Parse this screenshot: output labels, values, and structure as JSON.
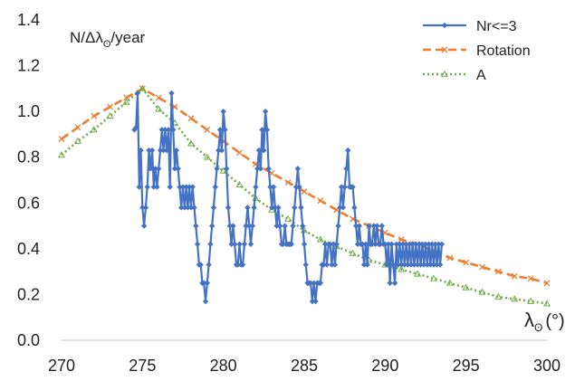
{
  "chart_data": {
    "type": "line",
    "title": "",
    "ylabel": "N/Δλ",
    "ylabel_sub": "ʘ",
    "ylabel_suffix": "/year",
    "xlabel": "λ",
    "xlabel_sub": "ʘ",
    "xlabel_suffix": "(°)",
    "xlim": [
      270,
      300
    ],
    "ylim": [
      0,
      1.4
    ],
    "xticks": [
      "270",
      "275",
      "280",
      "285",
      "290",
      "295",
      "300"
    ],
    "yticks": [
      "0.0",
      "0.2",
      "0.4",
      "0.6",
      "0.8",
      "1.0",
      "1.2",
      "1.4"
    ],
    "grid": false,
    "legend_position": "top-right",
    "series": [
      {
        "name": "Nr<=3",
        "color": "#4472C4",
        "style": "solid",
        "marker": "diamond",
        "points": [
          [
            274.5,
            0.92
          ],
          [
            274.6,
            0.93
          ],
          [
            274.7,
            1.08
          ],
          [
            274.8,
            0.67
          ],
          [
            274.9,
            0.83
          ],
          [
            275.0,
            0.58
          ],
          [
            275.1,
            0.5
          ],
          [
            275.2,
            0.58
          ],
          [
            275.3,
            0.67
          ],
          [
            275.4,
            0.83
          ],
          [
            275.5,
            0.75
          ],
          [
            275.6,
            0.83
          ],
          [
            275.7,
            0.67
          ],
          [
            275.8,
            0.75
          ],
          [
            275.9,
            0.67
          ],
          [
            276.0,
            0.75
          ],
          [
            276.1,
            0.83
          ],
          [
            276.2,
            0.92
          ],
          [
            276.3,
            0.83
          ],
          [
            276.4,
            0.92
          ],
          [
            276.5,
            0.83
          ],
          [
            276.6,
            0.92
          ],
          [
            276.7,
            0.67
          ],
          [
            276.8,
            1.08
          ],
          [
            276.9,
            0.92
          ],
          [
            277.0,
            0.75
          ],
          [
            277.1,
            0.83
          ],
          [
            277.2,
            0.75
          ],
          [
            277.3,
            0.67
          ],
          [
            277.4,
            0.58
          ],
          [
            277.5,
            0.67
          ],
          [
            277.6,
            0.58
          ],
          [
            277.7,
            0.67
          ],
          [
            277.8,
            0.58
          ],
          [
            277.9,
            0.67
          ],
          [
            278.0,
            0.58
          ],
          [
            278.1,
            0.67
          ],
          [
            278.2,
            0.58
          ],
          [
            278.3,
            0.5
          ],
          [
            278.4,
            0.42
          ],
          [
            278.5,
            0.33
          ],
          [
            278.6,
            0.33
          ],
          [
            278.7,
            0.25
          ],
          [
            278.8,
            0.25
          ],
          [
            278.9,
            0.17
          ],
          [
            279.0,
            0.25
          ],
          [
            279.1,
            0.33
          ],
          [
            279.2,
            0.42
          ],
          [
            279.3,
            0.5
          ],
          [
            279.4,
            0.58
          ],
          [
            279.5,
            0.67
          ],
          [
            279.6,
            0.75
          ],
          [
            279.7,
            0.83
          ],
          [
            279.8,
            0.92
          ],
          [
            279.9,
            0.83
          ],
          [
            280.0,
            1.0
          ],
          [
            280.1,
            0.92
          ],
          [
            280.2,
            0.75
          ],
          [
            280.3,
            0.58
          ],
          [
            280.4,
            0.5
          ],
          [
            280.5,
            0.42
          ],
          [
            280.6,
            0.5
          ],
          [
            280.7,
            0.42
          ],
          [
            280.8,
            0.33
          ],
          [
            280.9,
            0.33
          ],
          [
            281.0,
            0.42
          ],
          [
            281.1,
            0.33
          ],
          [
            281.2,
            0.33
          ],
          [
            281.3,
            0.42
          ],
          [
            281.4,
            0.5
          ],
          [
            281.5,
            0.58
          ],
          [
            281.6,
            0.5
          ],
          [
            281.7,
            0.42
          ],
          [
            281.8,
            0.5
          ],
          [
            281.9,
            0.58
          ],
          [
            282.0,
            0.67
          ],
          [
            282.1,
            0.75
          ],
          [
            282.2,
            0.83
          ],
          [
            282.3,
            0.75
          ],
          [
            282.4,
            0.92
          ],
          [
            282.5,
            0.83
          ],
          [
            282.6,
            1.0
          ],
          [
            282.7,
            0.92
          ],
          [
            282.8,
            0.75
          ],
          [
            282.9,
            0.67
          ],
          [
            283.0,
            0.58
          ],
          [
            283.1,
            0.67
          ],
          [
            283.2,
            0.58
          ],
          [
            283.3,
            0.5
          ],
          [
            283.4,
            0.58
          ],
          [
            283.5,
            0.5
          ],
          [
            283.6,
            0.42
          ],
          [
            283.7,
            0.42
          ],
          [
            283.8,
            0.5
          ],
          [
            283.9,
            0.42
          ],
          [
            284.0,
            0.42
          ],
          [
            284.1,
            0.42
          ],
          [
            284.2,
            0.42
          ],
          [
            284.3,
            0.5
          ],
          [
            284.4,
            0.58
          ],
          [
            284.5,
            0.67
          ],
          [
            284.6,
            0.75
          ],
          [
            284.7,
            0.67
          ],
          [
            284.8,
            0.58
          ],
          [
            284.9,
            0.5
          ],
          [
            285.0,
            0.42
          ],
          [
            285.1,
            0.33
          ],
          [
            285.2,
            0.25
          ],
          [
            285.3,
            0.25
          ],
          [
            285.4,
            0.25
          ],
          [
            285.5,
            0.17
          ],
          [
            285.6,
            0.25
          ],
          [
            285.7,
            0.17
          ],
          [
            285.8,
            0.25
          ],
          [
            285.9,
            0.25
          ],
          [
            286.0,
            0.25
          ],
          [
            286.1,
            0.33
          ],
          [
            286.2,
            0.33
          ],
          [
            286.3,
            0.42
          ],
          [
            286.4,
            0.33
          ],
          [
            286.5,
            0.42
          ],
          [
            286.6,
            0.42
          ],
          [
            286.7,
            0.33
          ],
          [
            286.8,
            0.42
          ],
          [
            286.9,
            0.33
          ],
          [
            287.0,
            0.42
          ],
          [
            287.1,
            0.5
          ],
          [
            287.2,
            0.58
          ],
          [
            287.3,
            0.67
          ],
          [
            287.4,
            0.58
          ],
          [
            287.5,
            0.67
          ],
          [
            287.6,
            0.75
          ],
          [
            287.7,
            0.83
          ],
          [
            287.8,
            0.67
          ],
          [
            287.9,
            0.67
          ],
          [
            288.0,
            0.67
          ],
          [
            288.1,
            0.58
          ],
          [
            288.2,
            0.5
          ],
          [
            288.3,
            0.42
          ],
          [
            288.4,
            0.5
          ],
          [
            288.5,
            0.42
          ],
          [
            288.6,
            0.42
          ],
          [
            288.7,
            0.33
          ],
          [
            288.8,
            0.42
          ],
          [
            288.9,
            0.33
          ],
          [
            289.0,
            0.5
          ],
          [
            289.1,
            0.42
          ],
          [
            289.2,
            0.42
          ],
          [
            289.3,
            0.5
          ],
          [
            289.4,
            0.42
          ],
          [
            289.5,
            0.5
          ],
          [
            289.6,
            0.42
          ],
          [
            289.7,
            0.42
          ],
          [
            289.8,
            0.5
          ],
          [
            289.9,
            0.42
          ],
          [
            290.0,
            0.42
          ],
          [
            290.1,
            0.33
          ],
          [
            290.2,
            0.42
          ],
          [
            290.3,
            0.25
          ],
          [
            290.4,
            0.42
          ],
          [
            290.5,
            0.33
          ],
          [
            290.6,
            0.25
          ],
          [
            290.7,
            0.42
          ],
          [
            290.8,
            0.33
          ],
          [
            290.9,
            0.42
          ],
          [
            291.0,
            0.33
          ],
          [
            291.1,
            0.42
          ],
          [
            291.2,
            0.33
          ],
          [
            291.3,
            0.42
          ],
          [
            291.4,
            0.33
          ],
          [
            291.5,
            0.42
          ],
          [
            291.6,
            0.33
          ],
          [
            291.7,
            0.42
          ],
          [
            291.8,
            0.33
          ],
          [
            291.9,
            0.42
          ],
          [
            292.0,
            0.33
          ],
          [
            292.1,
            0.42
          ],
          [
            292.2,
            0.33
          ],
          [
            292.3,
            0.42
          ],
          [
            292.4,
            0.33
          ],
          [
            292.5,
            0.42
          ],
          [
            292.6,
            0.33
          ],
          [
            292.7,
            0.42
          ],
          [
            292.8,
            0.33
          ],
          [
            292.9,
            0.42
          ],
          [
            293.0,
            0.33
          ],
          [
            293.1,
            0.42
          ],
          [
            293.2,
            0.33
          ],
          [
            293.3,
            0.42
          ],
          [
            293.4,
            0.33
          ],
          [
            293.5,
            0.42
          ]
        ]
      },
      {
        "name": "Rotation",
        "color": "#ED7D31",
        "style": "dashed",
        "marker": "x",
        "points": [
          [
            270,
            0.88
          ],
          [
            271,
            0.93
          ],
          [
            272,
            0.98
          ],
          [
            273,
            1.02
          ],
          [
            274,
            1.06
          ],
          [
            275,
            1.1
          ],
          [
            276,
            1.06
          ],
          [
            277,
            1.02
          ],
          [
            278,
            0.97
          ],
          [
            279,
            0.92
          ],
          [
            280,
            0.87
          ],
          [
            281,
            0.82
          ],
          [
            282,
            0.77
          ],
          [
            283,
            0.73
          ],
          [
            284,
            0.69
          ],
          [
            285,
            0.65
          ],
          [
            286,
            0.61
          ],
          [
            287,
            0.57
          ],
          [
            288,
            0.53
          ],
          [
            289,
            0.5
          ],
          [
            290,
            0.47
          ],
          [
            291,
            0.44
          ],
          [
            292,
            0.42
          ],
          [
            293,
            0.39
          ],
          [
            294,
            0.36
          ],
          [
            295,
            0.34
          ],
          [
            296,
            0.32
          ],
          [
            297,
            0.3
          ],
          [
            298,
            0.28
          ],
          [
            299,
            0.27
          ],
          [
            300,
            0.25
          ]
        ]
      },
      {
        "name": "A",
        "color": "#70AD47",
        "style": "dotted",
        "marker": "triangle",
        "points": [
          [
            270,
            0.81
          ],
          [
            271,
            0.87
          ],
          [
            272,
            0.92
          ],
          [
            273,
            0.98
          ],
          [
            274,
            1.04
          ],
          [
            275,
            1.1
          ],
          [
            276,
            1.01
          ],
          [
            277,
            0.95
          ],
          [
            278,
            0.86
          ],
          [
            279,
            0.8
          ],
          [
            280,
            0.74
          ],
          [
            281,
            0.68
          ],
          [
            282,
            0.62
          ],
          [
            283,
            0.57
          ],
          [
            284,
            0.53
          ],
          [
            285,
            0.48
          ],
          [
            286,
            0.44
          ],
          [
            287,
            0.41
          ],
          [
            288,
            0.38
          ],
          [
            289,
            0.35
          ],
          [
            290,
            0.33
          ],
          [
            291,
            0.31
          ],
          [
            292,
            0.29
          ],
          [
            293,
            0.27
          ],
          [
            294,
            0.25
          ],
          [
            295,
            0.23
          ],
          [
            296,
            0.21
          ],
          [
            297,
            0.19
          ],
          [
            298,
            0.18
          ],
          [
            299,
            0.17
          ],
          [
            300,
            0.16
          ]
        ]
      }
    ]
  }
}
